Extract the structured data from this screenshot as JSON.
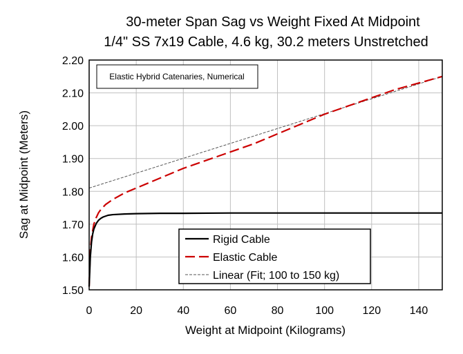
{
  "chart_data": {
    "type": "line",
    "title": "30-meter Span Sag vs Weight Fixed At Midpoint",
    "subtitle": "1/4\" SS 7x19 Cable, 4.6 kg, 30.2 meters Unstretched",
    "xlabel": "Weight at Midpoint (Kilograms)",
    "ylabel": "Sag at Midpoint (Meters)",
    "xlim": [
      0,
      150
    ],
    "ylim": [
      1.5,
      2.2
    ],
    "x_ticks": [
      "0",
      "20",
      "40",
      "60",
      "80",
      "100",
      "120",
      "140"
    ],
    "y_ticks": [
      "1.50",
      "1.60",
      "1.70",
      "1.80",
      "1.90",
      "2.00",
      "2.10",
      "2.20"
    ],
    "grid": true,
    "annotation": "Elastic Hybrid Catenaries, Numerical",
    "legend_position": "bottom-center",
    "series": [
      {
        "name": "Rigid Cable",
        "color": "#000000",
        "style": "solid",
        "x": [
          0,
          0.5,
          1,
          1.5,
          2,
          3,
          4,
          5,
          6,
          8,
          10,
          15,
          20,
          30,
          40,
          60,
          80,
          100,
          120,
          150
        ],
        "y": [
          1.51,
          1.6,
          1.645,
          1.67,
          1.685,
          1.702,
          1.712,
          1.718,
          1.722,
          1.727,
          1.729,
          1.731,
          1.732,
          1.733,
          1.733,
          1.734,
          1.734,
          1.734,
          1.734,
          1.734
        ]
      },
      {
        "name": "Elastic Cable",
        "color": "#cc0000",
        "style": "dashed",
        "x": [
          0,
          0.5,
          1,
          2,
          3,
          4,
          5,
          7,
          10,
          15,
          20,
          30,
          40,
          50,
          60,
          70,
          80,
          85,
          90,
          100,
          110,
          120,
          130,
          140,
          150
        ],
        "y": [
          1.51,
          1.62,
          1.66,
          1.7,
          1.72,
          1.735,
          1.745,
          1.76,
          1.775,
          1.795,
          1.81,
          1.84,
          1.87,
          1.895,
          1.92,
          1.945,
          1.975,
          1.99,
          2.005,
          2.035,
          2.06,
          2.085,
          2.11,
          2.13,
          2.15
        ]
      },
      {
        "name": "Linear (Fit; 100 to 150 kg)",
        "color": "#555555",
        "style": "dotted",
        "x": [
          0,
          150
        ],
        "y": [
          1.81,
          2.15
        ]
      }
    ]
  }
}
